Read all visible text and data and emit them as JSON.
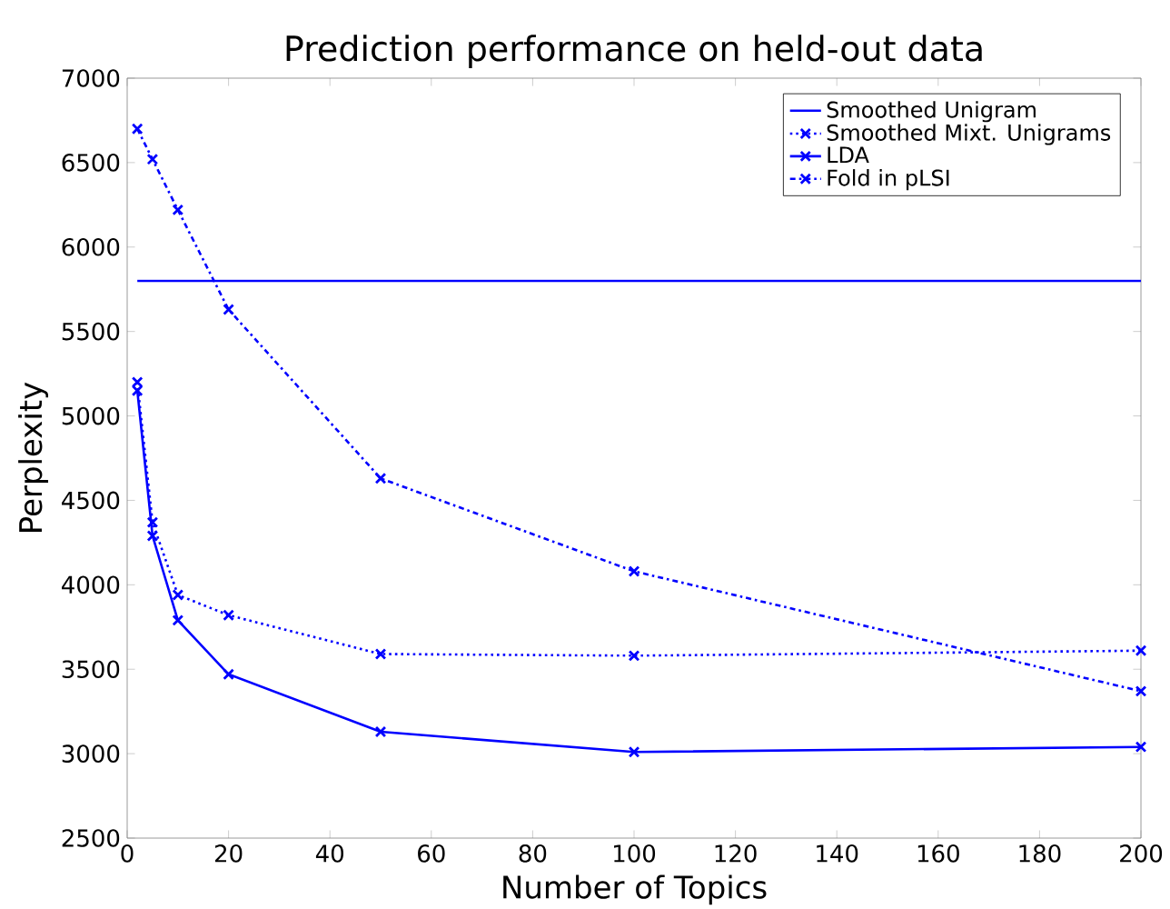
{
  "chart_data": {
    "type": "line",
    "title": "Prediction performance on held-out data",
    "xlabel": "Number of Topics",
    "ylabel": "Perplexity",
    "xlim": [
      0,
      200
    ],
    "ylim": [
      2500,
      7000
    ],
    "xticks": [
      0,
      20,
      40,
      60,
      80,
      100,
      120,
      140,
      160,
      180,
      200
    ],
    "yticks": [
      2500,
      3000,
      3500,
      4000,
      4500,
      5000,
      5500,
      6000,
      6500,
      7000
    ],
    "legend": "top right",
    "grid": false,
    "marker": "cross",
    "series": [
      {
        "name": "Smoothed Unigram",
        "color": "#0000ff",
        "x": [
          2,
          200
        ],
        "values": [
          5800,
          5800
        ],
        "marker": "none",
        "line_style": "solid"
      },
      {
        "name": "Smoothed Mixt. Unigrams",
        "color": "#0000ff",
        "x": [
          2,
          5,
          10,
          20,
          50,
          100,
          200
        ],
        "values": [
          5200,
          4370,
          3940,
          3820,
          3590,
          3580,
          3610
        ],
        "line_style": "dotted"
      },
      {
        "name": "LDA",
        "color": "#0000ff",
        "x": [
          2,
          5,
          10,
          20,
          50,
          100,
          200
        ],
        "values": [
          5150,
          4290,
          3790,
          3470,
          3130,
          3010,
          3040
        ],
        "line_style": "solid"
      },
      {
        "name": "Fold in pLSI",
        "color": "#0000ff",
        "x": [
          2,
          5,
          10,
          20,
          50,
          100,
          200
        ],
        "values": [
          6700,
          6520,
          6220,
          5630,
          4630,
          4080,
          3370
        ],
        "line_style": "dashed"
      }
    ]
  }
}
